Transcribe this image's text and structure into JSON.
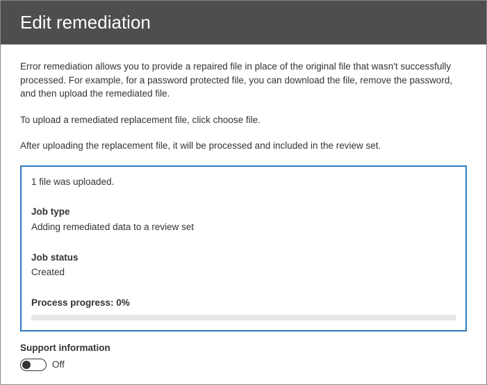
{
  "header": {
    "title": "Edit remediation"
  },
  "body": {
    "intro": "Error remediation allows you to provide a repaired file in place of the original file that wasn't successfully processed. For example, for a password protected file, you can download the file, remove the password, and then upload the remediated file.",
    "upload_hint": "To upload a remediated replacement file, click choose file.",
    "after_upload": "After uploading the replacement file, it will be processed and included in the review set."
  },
  "status_panel": {
    "uploaded_message": "1 file was uploaded.",
    "job_type_label": "Job type",
    "job_type_value": "Adding remediated data to a review set",
    "job_status_label": "Job status",
    "job_status_value": "Created",
    "progress_label": "Process progress: 0%",
    "progress_percent": 0,
    "border_color": "#2e7abf",
    "track_color": "#e6e6e6",
    "fill_color": "#0078d4"
  },
  "support": {
    "heading": "Support information",
    "toggle_state": "Off",
    "toggle_on": false
  },
  "colors": {
    "header_bg": "#4e4e4e",
    "header_text": "#ffffff",
    "body_text": "#333333",
    "page_bg": "#ffffff"
  }
}
